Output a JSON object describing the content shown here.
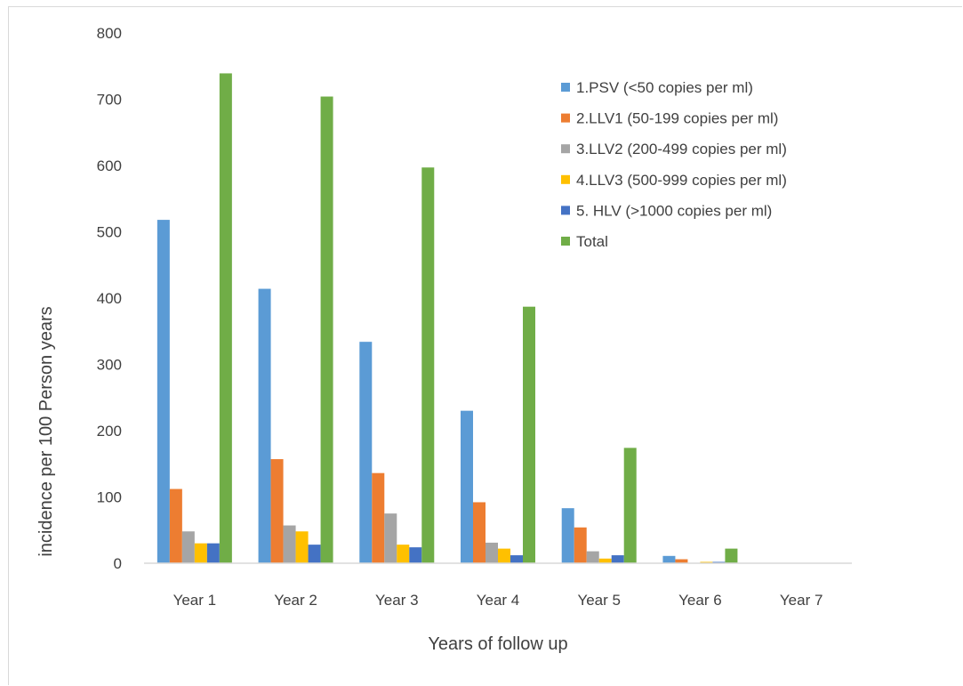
{
  "chart_data": {
    "type": "bar",
    "title": "",
    "xlabel": "Years of follow up",
    "ylabel": "incidence per 100 Person  years",
    "ylim": [
      0,
      800
    ],
    "yticks": [
      0,
      100,
      200,
      300,
      400,
      500,
      600,
      700,
      800
    ],
    "grid": false,
    "legend_position": "top-right",
    "categories": [
      "Year 1",
      "Year 2",
      "Year 3",
      "Year 4",
      "Year 5",
      "Year 6",
      "Year 7"
    ],
    "series": [
      {
        "name": "1.PSV (<50 copies per ml)",
        "color": "#5B9BD5",
        "values": [
          518,
          414,
          334,
          230,
          83,
          11,
          0
        ]
      },
      {
        "name": "2.LLV1 (50-199 copies per ml)",
        "color": "#ED7D31",
        "values": [
          112,
          157,
          136,
          92,
          54,
          6,
          0
        ]
      },
      {
        "name": "3.LLV2 (200-499 copies per ml)",
        "color": "#A5A5A5",
        "values": [
          48,
          57,
          75,
          31,
          18,
          0,
          0
        ]
      },
      {
        "name": "4.LLV3 (500-999 copies per ml)",
        "color": "#FFC000",
        "values": [
          30,
          48,
          28,
          22,
          7,
          2,
          0
        ]
      },
      {
        "name": "5. HLV (>1000 copies per ml)",
        "color": "#4472C4",
        "values": [
          30,
          28,
          24,
          12,
          12,
          2,
          0
        ]
      },
      {
        "name": "Total",
        "color": "#70AD47",
        "values": [
          739,
          704,
          597,
          387,
          174,
          22,
          0
        ]
      }
    ]
  }
}
